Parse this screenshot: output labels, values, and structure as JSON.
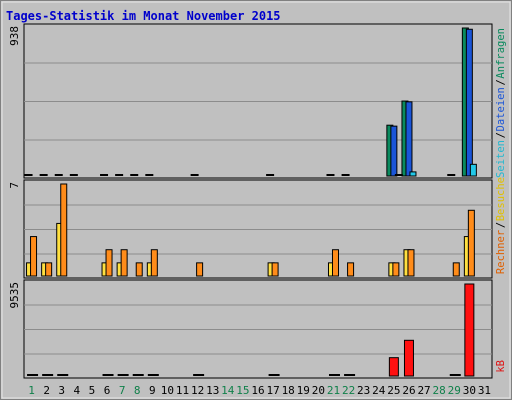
{
  "title": "Tages-Statistik im Monat November 2015",
  "legend_right": {
    "top": [
      {
        "text": "Anfragen",
        "color": "#0a8a5e"
      },
      {
        "text": "Dateien",
        "color": "#1a55d8"
      },
      {
        "text": "Seiten",
        "color": "#22b8d0"
      }
    ],
    "mid": [
      {
        "text": "Besuche",
        "color": "#e0c000"
      },
      {
        "text": "Rechner",
        "color": "#e06000"
      }
    ],
    "bot": [
      {
        "text": "kB",
        "color": "#e01010"
      }
    ]
  },
  "colors": {
    "background": "#c0c0c0",
    "grid": "#8c8c8c",
    "title": "#0000cc",
    "weekend": "#10804a",
    "weekday": "#000000",
    "anfragen": "#0a8a5e",
    "dateien": "#1a55d8",
    "seiten": "#22c8e8",
    "besuche": "#ffe040",
    "rechner": "#ff8c1a",
    "kb": "#ff1010"
  },
  "chart_data": [
    {
      "type": "bar",
      "name": "top",
      "y_max_label": "938",
      "ylim": [
        0,
        938
      ],
      "x": [
        1,
        2,
        3,
        4,
        5,
        6,
        7,
        8,
        9,
        10,
        11,
        12,
        13,
        14,
        15,
        16,
        17,
        18,
        19,
        20,
        21,
        22,
        23,
        24,
        25,
        26,
        27,
        28,
        29,
        30,
        31
      ],
      "series": [
        {
          "name": "Anfragen",
          "values": [
            3,
            3,
            9,
            3,
            0,
            3,
            3,
            3,
            3,
            0,
            0,
            3,
            0,
            0,
            0,
            0,
            3,
            0,
            0,
            0,
            3,
            3,
            0,
            0,
            322,
            475,
            0,
            0,
            3,
            938,
            0
          ]
        },
        {
          "name": "Dateien",
          "values": [
            0,
            0,
            0,
            0,
            0,
            0,
            0,
            0,
            0,
            0,
            0,
            0,
            0,
            0,
            0,
            0,
            0,
            0,
            0,
            0,
            0,
            0,
            0,
            0,
            316,
            470,
            0,
            0,
            0,
            930,
            0
          ]
        },
        {
          "name": "Seiten",
          "values": [
            0,
            0,
            0,
            0,
            0,
            0,
            0,
            0,
            0,
            0,
            0,
            0,
            0,
            0,
            0,
            0,
            0,
            0,
            0,
            0,
            0,
            0,
            0,
            0,
            14,
            26,
            0,
            0,
            0,
            74,
            0
          ]
        }
      ]
    },
    {
      "type": "bar",
      "name": "mid",
      "y_max_label": "7",
      "ylim": [
        0,
        7
      ],
      "x": [
        1,
        2,
        3,
        4,
        5,
        6,
        7,
        8,
        9,
        10,
        11,
        12,
        13,
        14,
        15,
        16,
        17,
        18,
        19,
        20,
        21,
        22,
        23,
        24,
        25,
        26,
        27,
        28,
        29,
        30,
        31
      ],
      "series": [
        {
          "name": "Besuche",
          "values": [
            1,
            1,
            4,
            0,
            0,
            1,
            1,
            0,
            1,
            0,
            0,
            0,
            0,
            0,
            0,
            0,
            1,
            0,
            0,
            0,
            1,
            0,
            0,
            0,
            1,
            2,
            0,
            0,
            0,
            3,
            0
          ]
        },
        {
          "name": "Rechner",
          "values": [
            3,
            1,
            7,
            0,
            0,
            2,
            2,
            1,
            2,
            0,
            0,
            1,
            0,
            0,
            0,
            0,
            1,
            0,
            0,
            0,
            2,
            1,
            0,
            0,
            1,
            2,
            0,
            0,
            1,
            5,
            0
          ]
        }
      ]
    },
    {
      "type": "bar",
      "name": "bot",
      "y_max_label": "9535",
      "ylim": [
        0,
        9535
      ],
      "x": [
        1,
        2,
        3,
        4,
        5,
        6,
        7,
        8,
        9,
        10,
        11,
        12,
        13,
        14,
        15,
        16,
        17,
        18,
        19,
        20,
        21,
        22,
        23,
        24,
        25,
        26,
        27,
        28,
        29,
        30,
        31
      ],
      "series": [
        {
          "name": "kB",
          "values": [
            120,
            120,
            120,
            0,
            0,
            120,
            120,
            120,
            120,
            0,
            0,
            120,
            0,
            0,
            0,
            0,
            120,
            0,
            0,
            0,
            120,
            120,
            0,
            0,
            1900,
            3700,
            0,
            0,
            120,
            9535,
            0
          ]
        }
      ]
    }
  ],
  "x_axis": {
    "labels": [
      "1",
      "2",
      "3",
      "4",
      "5",
      "6",
      "7",
      "8",
      "9",
      "10",
      "11",
      "12",
      "13",
      "14",
      "15",
      "16",
      "17",
      "18",
      "19",
      "20",
      "21",
      "22",
      "23",
      "24",
      "25",
      "26",
      "27",
      "28",
      "29",
      "30",
      "31"
    ],
    "weekend_days": [
      1,
      7,
      8,
      14,
      15,
      21,
      22,
      28,
      29
    ]
  }
}
